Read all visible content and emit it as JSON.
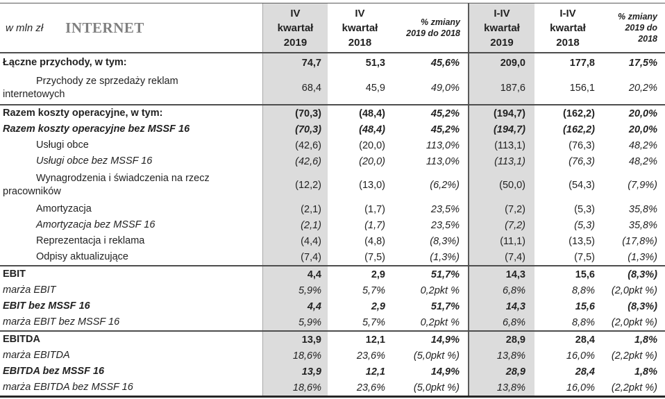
{
  "meta": {
    "unit_label": "w mln zł",
    "segment_title": "INTERNET"
  },
  "colors": {
    "highlight_column_fill": "#dcdcdc",
    "title_gray": "#7f7f7f",
    "text": "#222222",
    "grid_dark": "#4d4d4d",
    "grid_light": "#a8a8a8"
  },
  "header": {
    "columns": [
      {
        "id": "q4-2019",
        "lines": [
          "IV",
          "kwartał",
          "2019"
        ],
        "highlight": true,
        "type": "period"
      },
      {
        "id": "q4-2018",
        "lines": [
          "IV",
          "kwartał",
          "2018"
        ],
        "highlight": false,
        "type": "period"
      },
      {
        "id": "change-quarter",
        "lines": [
          "% zmiany",
          "2019 do 2018"
        ],
        "highlight": false,
        "type": "change"
      },
      {
        "id": "ytd-2019",
        "lines": [
          "I-IV",
          "kwartał",
          "2019"
        ],
        "highlight": true,
        "type": "period"
      },
      {
        "id": "ytd-2018",
        "lines": [
          "I-IV",
          "kwartał",
          "2018"
        ],
        "highlight": false,
        "type": "period"
      },
      {
        "id": "change-ytd",
        "lines": [
          "% zmiany",
          "2019 do",
          "2018"
        ],
        "highlight": false,
        "type": "change"
      }
    ]
  },
  "rows": [
    {
      "label": [
        "Łączne przychody, w tym:"
      ],
      "style": "bold",
      "indent": false,
      "section_start": false,
      "values": [
        "74,7",
        "51,3",
        "45,6%",
        "209,0",
        "177,8",
        "17,5%"
      ]
    },
    {
      "label": [
        "Przychody ze sprzedaży reklam",
        "internetowych"
      ],
      "style": "regular",
      "indent": true,
      "section_start": false,
      "values": [
        "68,4",
        "45,9",
        "49,0%",
        "187,6",
        "156,1",
        "20,2%"
      ]
    },
    {
      "label": [
        "Razem koszty operacyjne, w tym:"
      ],
      "style": "bold",
      "indent": false,
      "section_start": true,
      "values": [
        "(70,3)",
        "(48,4)",
        "45,2%",
        "(194,7)",
        "(162,2)",
        "20,0%"
      ]
    },
    {
      "label": [
        "Razem koszty operacyjne bez MSSF 16"
      ],
      "style": "bold-italic",
      "indent": false,
      "section_start": false,
      "values": [
        "(70,3)",
        "(48,4)",
        "45,2%",
        "(194,7)",
        "(162,2)",
        "20,0%"
      ]
    },
    {
      "label": [
        "Usługi obce"
      ],
      "style": "regular",
      "indent": true,
      "section_start": false,
      "values": [
        "(42,6)",
        "(20,0)",
        "113,0%",
        "(113,1)",
        "(76,3)",
        "48,2%"
      ]
    },
    {
      "label": [
        "Usługi obce bez MSSF 16"
      ],
      "style": "italic",
      "indent": true,
      "section_start": false,
      "values": [
        "(42,6)",
        "(20,0)",
        "113,0%",
        "(113,1)",
        "(76,3)",
        "48,2%"
      ]
    },
    {
      "label": [
        "Wynagrodzenia i świadczenia na rzecz",
        "pracowników"
      ],
      "style": "regular",
      "indent": true,
      "section_start": false,
      "values": [
        "(12,2)",
        "(13,0)",
        "(6,2%)",
        "(50,0)",
        "(54,3)",
        "(7,9%)"
      ]
    },
    {
      "label": [
        "Amortyzacja"
      ],
      "style": "regular",
      "indent": true,
      "section_start": false,
      "values": [
        "(2,1)",
        "(1,7)",
        "23,5%",
        "(7,2)",
        "(5,3)",
        "35,8%"
      ]
    },
    {
      "label": [
        "Amortyzacja bez MSSF 16"
      ],
      "style": "italic",
      "indent": true,
      "section_start": false,
      "values": [
        "(2,1)",
        "(1,7)",
        "23,5%",
        "(7,2)",
        "(5,3)",
        "35,8%"
      ]
    },
    {
      "label": [
        "Reprezentacja i reklama"
      ],
      "style": "regular",
      "indent": true,
      "section_start": false,
      "values": [
        "(4,4)",
        "(4,8)",
        "(8,3%)",
        "(11,1)",
        "(13,5)",
        "(17,8%)"
      ]
    },
    {
      "label": [
        "Odpisy aktualizujące"
      ],
      "style": "regular",
      "indent": true,
      "section_start": false,
      "values": [
        "(7,4)",
        "(7,5)",
        "(1,3%)",
        "(7,4)",
        "(7,5)",
        "(1,3%)"
      ]
    },
    {
      "label": [
        "EBIT"
      ],
      "style": "bold",
      "indent": false,
      "section_start": true,
      "values": [
        "4,4",
        "2,9",
        "51,7%",
        "14,3",
        "15,6",
        "(8,3%)"
      ]
    },
    {
      "label": [
        "marża EBIT"
      ],
      "style": "italic",
      "indent": false,
      "section_start": false,
      "values": [
        "5,9%",
        "5,7%",
        "0,2pkt %",
        "6,8%",
        "8,8%",
        "(2,0pkt %)"
      ]
    },
    {
      "label": [
        "EBIT bez MSSF 16"
      ],
      "style": "bold-italic",
      "indent": false,
      "section_start": false,
      "values": [
        "4,4",
        "2,9",
        "51,7%",
        "14,3",
        "15,6",
        "(8,3%)"
      ]
    },
    {
      "label": [
        "marża EBIT bez MSSF 16"
      ],
      "style": "italic",
      "indent": false,
      "section_start": false,
      "values": [
        "5,9%",
        "5,7%",
        "0,2pkt %",
        "6,8%",
        "8,8%",
        "(2,0pkt %)"
      ]
    },
    {
      "label": [
        "EBITDA"
      ],
      "style": "bold",
      "indent": false,
      "section_start": true,
      "values": [
        "13,9",
        "12,1",
        "14,9%",
        "28,9",
        "28,4",
        "1,8%"
      ]
    },
    {
      "label": [
        "marża EBITDA"
      ],
      "style": "italic",
      "indent": false,
      "section_start": false,
      "values": [
        "18,6%",
        "23,6%",
        "(5,0pkt %)",
        "13,8%",
        "16,0%",
        "(2,2pkt %)"
      ]
    },
    {
      "label": [
        "EBITDA bez MSSF 16"
      ],
      "style": "bold-italic",
      "indent": false,
      "section_start": false,
      "values": [
        "13,9",
        "12,1",
        "14,9%",
        "28,9",
        "28,4",
        "1,8%"
      ]
    },
    {
      "label": [
        "marża EBITDA bez MSSF 16"
      ],
      "style": "italic",
      "indent": false,
      "section_start": false,
      "values": [
        "18,6%",
        "23,6%",
        "(5,0pkt %)",
        "13,8%",
        "16,0%",
        "(2,2pkt %)"
      ]
    }
  ]
}
